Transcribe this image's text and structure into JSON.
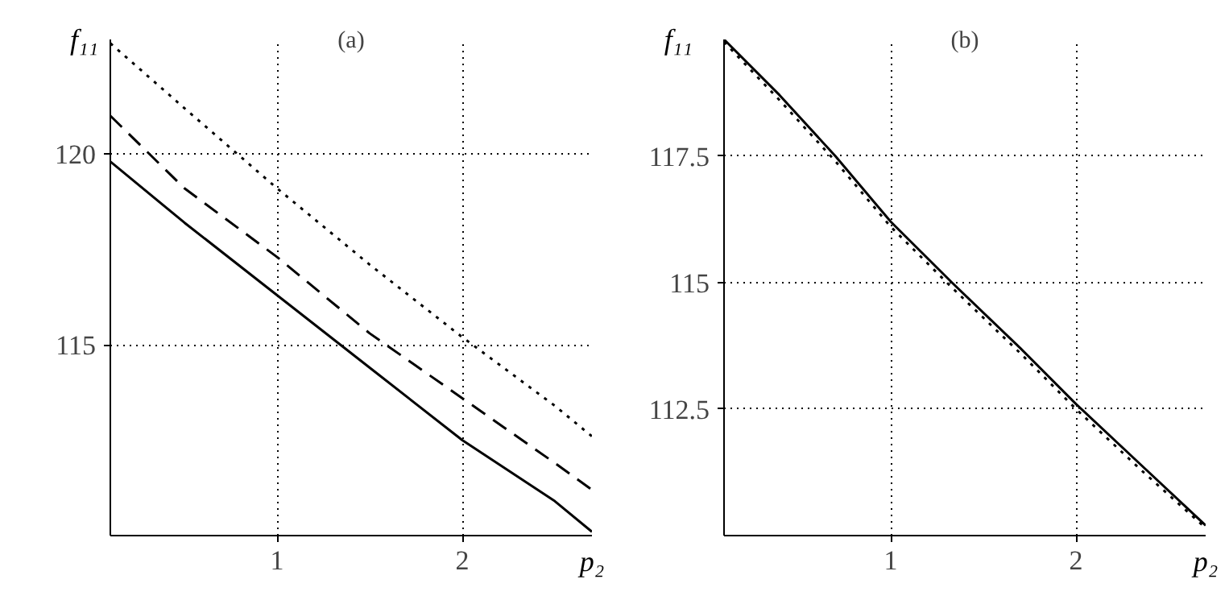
{
  "chart_data": [
    {
      "type": "line",
      "title": "(a)",
      "xlabel": "p₂",
      "ylabel": "f₁₁",
      "x": [
        0.1,
        0.5,
        1,
        1.5,
        2,
        2.5,
        2.7
      ],
      "xlim": [
        0.1,
        2.7
      ],
      "ylim": [
        110,
        123
      ],
      "xticks": [
        1,
        2
      ],
      "yticks": [
        115,
        120
      ],
      "grid": true,
      "series": [
        {
          "color": "#000000",
          "line_style": "solid",
          "values": [
            119.8,
            118.2,
            116.3,
            114.4,
            112.5,
            110.9,
            110.1
          ]
        },
        {
          "color": "#000000",
          "line_style": "dashed",
          "values": [
            121.0,
            119.1,
            117.3,
            115.3,
            113.6,
            111.9,
            111.2
          ]
        },
        {
          "color": "#000000",
          "line_style": "dotted",
          "values": [
            122.9,
            121.2,
            119.1,
            117.1,
            115.2,
            113.4,
            112.6
          ]
        }
      ]
    },
    {
      "type": "line",
      "title": "(b)",
      "xlabel": "p₂",
      "ylabel": "f₁₁",
      "x": [
        0.1,
        0.4,
        0.7,
        1,
        1.33,
        1.7,
        2,
        2.35,
        2.7
      ],
      "xlim": [
        0.1,
        2.7
      ],
      "ylim": [
        110,
        119.8
      ],
      "xticks": [
        1,
        2
      ],
      "yticks": [
        112.5,
        115,
        117.5
      ],
      "grid": true,
      "series": [
        {
          "color": "#000000",
          "line_style": "solid",
          "values": [
            119.8,
            118.7,
            117.5,
            116.2,
            115.0,
            113.7,
            112.6,
            111.4,
            110.2
          ]
        },
        {
          "color": "#000000",
          "line_style": "dotted",
          "values": [
            119.75,
            118.6,
            117.4,
            116.1,
            114.9,
            113.6,
            112.5,
            111.3,
            110.15
          ]
        }
      ]
    }
  ]
}
